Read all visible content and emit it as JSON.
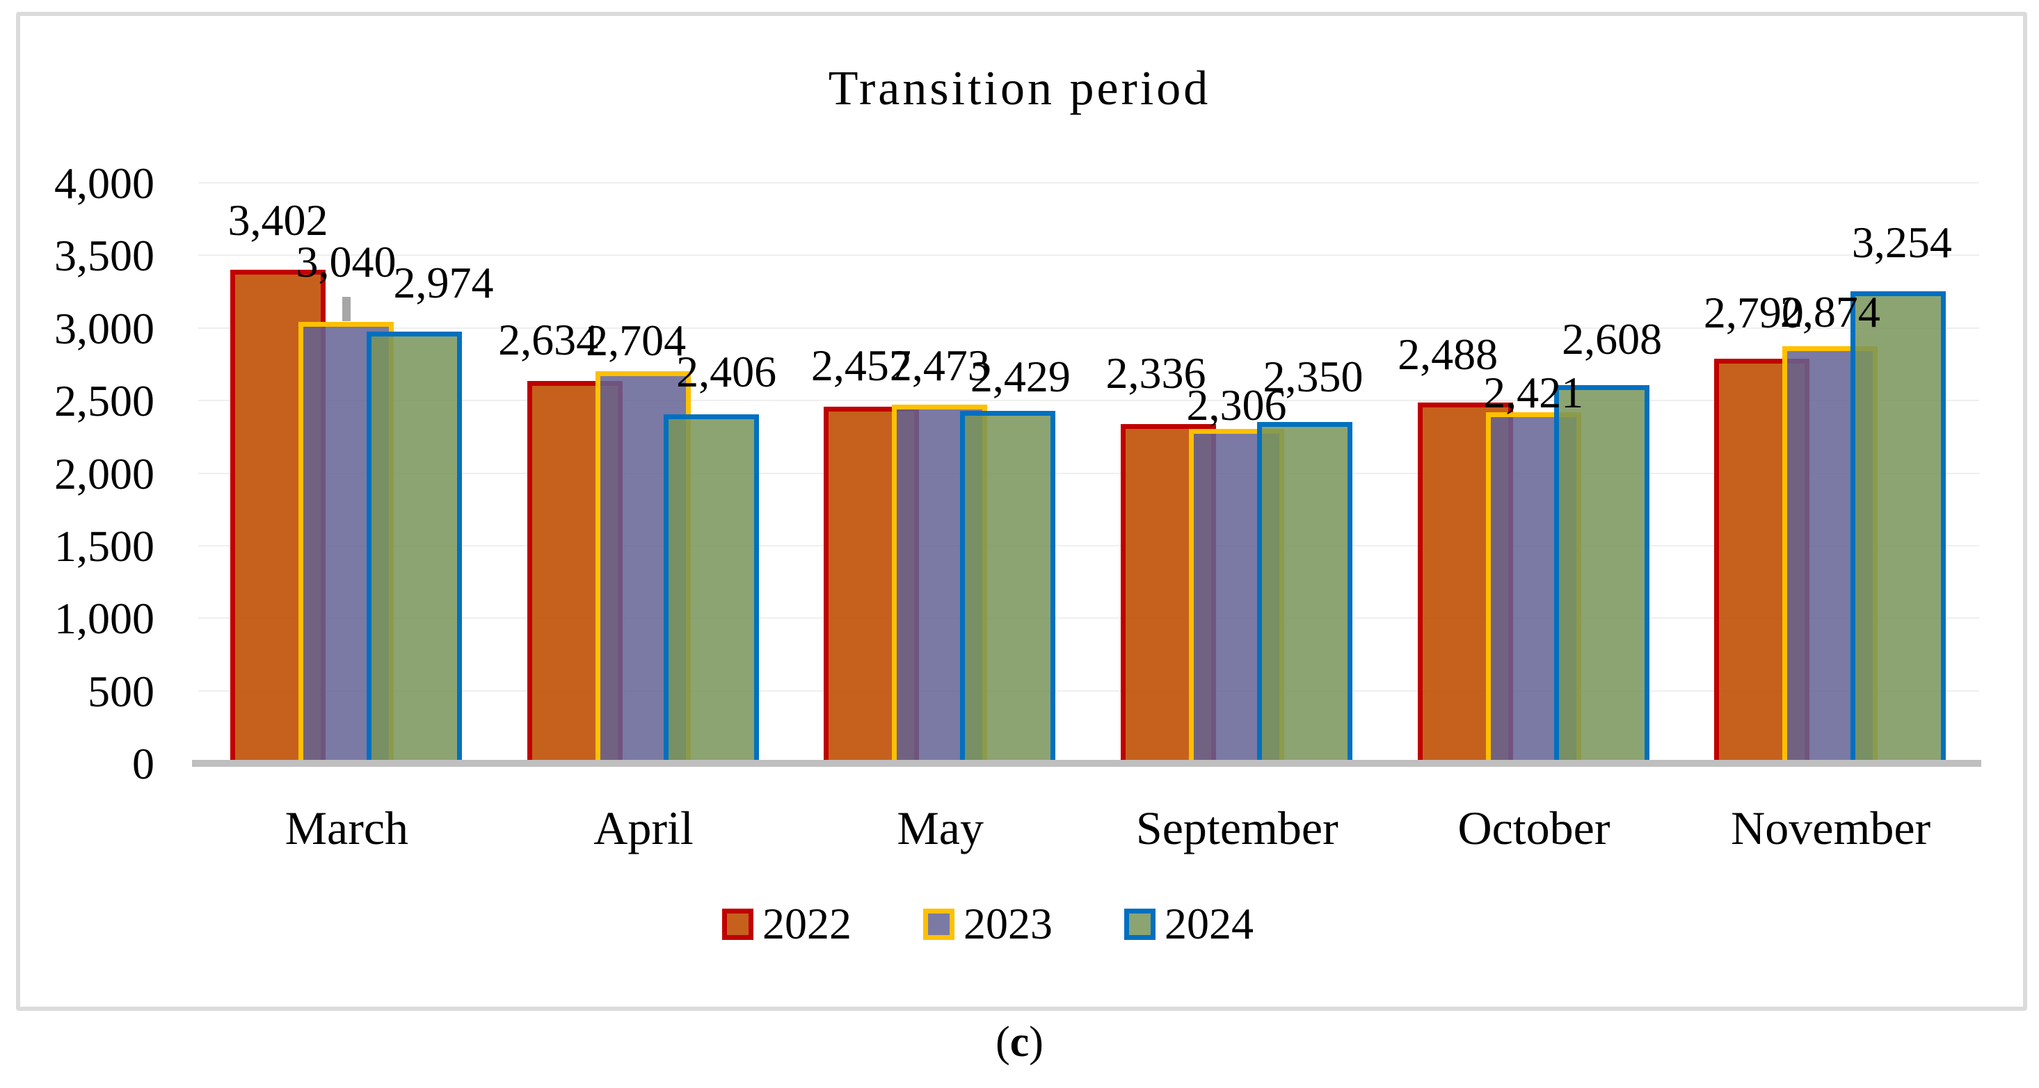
{
  "title": "Transition period",
  "caption": {
    "pre": "(",
    "letter": "c",
    "post": ")"
  },
  "chart_data": {
    "type": "bar",
    "title": "Transition period",
    "categories": [
      "March",
      "April",
      "May",
      "September",
      "October",
      "November"
    ],
    "series": [
      {
        "name": "2022",
        "fill": "rgba(193,84,10,0.92)",
        "border": "#C00000",
        "values": [
          3402,
          2634,
          2457,
          2336,
          2488,
          2790
        ],
        "labels": [
          "3,402",
          "2,634",
          "2,457",
          "2,336",
          "2,488",
          "2,790"
        ]
      },
      {
        "name": "2023",
        "fill": "rgba(99,99,148,0.85)",
        "border": "#FFC000",
        "values": [
          3040,
          2704,
          2473,
          2306,
          2421,
          2874
        ],
        "labels": [
          "3,040",
          "2,704",
          "2,473",
          "2,306",
          "2,421",
          "2,874"
        ]
      },
      {
        "name": "2024",
        "fill": "rgba(120,148,88,0.85)",
        "border": "#0070C0",
        "values": [
          2974,
          2406,
          2429,
          2350,
          2608,
          3254
        ],
        "labels": [
          "2,974",
          "2,406",
          "2,429",
          "2,350",
          "2,608",
          "3,254"
        ]
      }
    ],
    "ylim": [
      0,
      4000
    ],
    "ytick_step": 500,
    "ytick_labels": [
      "0",
      "500",
      "1,000",
      "1,500",
      "2,000",
      "2,500",
      "3,000",
      "3,500",
      "4,000"
    ],
    "grid": true,
    "legend_position": "bottom",
    "bar_overlap_style": "overlapping",
    "label_layout_hints": {
      "dx": [
        [
          0,
          -38,
          -15,
          -18,
          -25,
          -12
        ],
        [
          0,
          -10,
          0,
          0,
          0,
          0
        ],
        [
          42,
          22,
          18,
          12,
          15,
          5
        ]
      ],
      "gap": [
        [
          50,
          38,
          38,
          52,
          48,
          45
        ],
        [
          65,
          23,
          35,
          13,
          7,
          28
        ],
        [
          49,
          40,
          28,
          44,
          45,
          49
        ]
      ]
    },
    "leader_line": {
      "series": 1,
      "category": 0,
      "width": 12,
      "height": 36,
      "color": "#A6A6A6"
    }
  },
  "style": {
    "gridline_color": "#EFEFEF",
    "axis_line_color": "#BFBFBF",
    "card_border_color": "#DBDBDB",
    "text_color": "#000000",
    "background": "#FFFFFF"
  }
}
